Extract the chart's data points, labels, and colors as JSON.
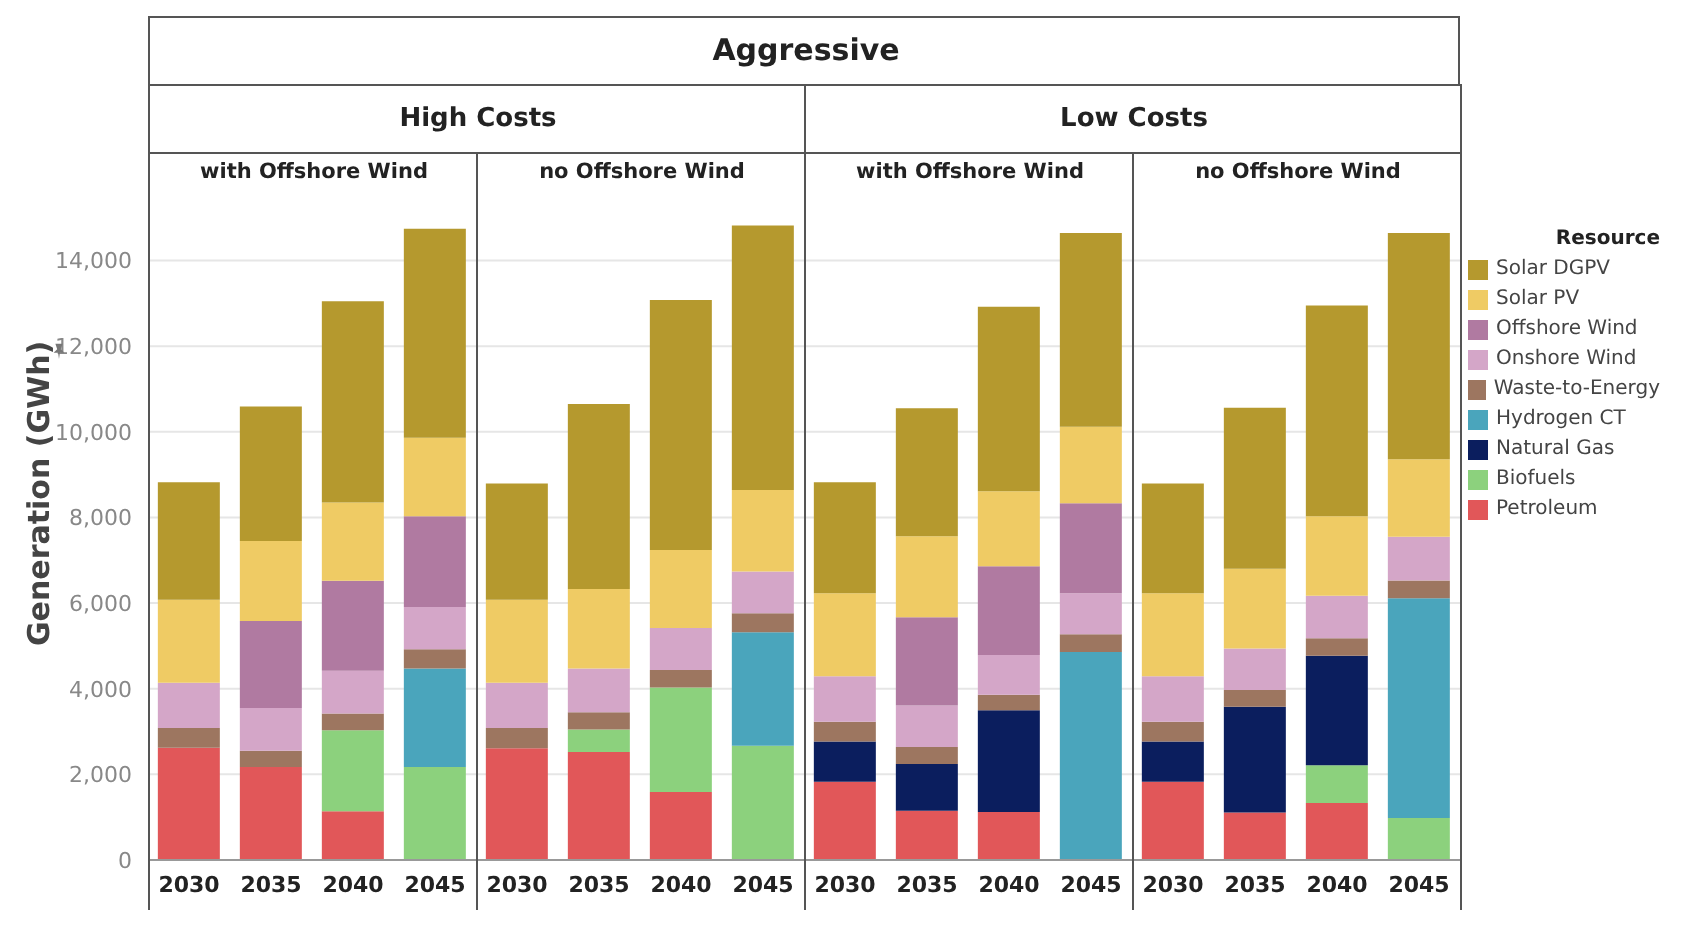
{
  "chart_data": [
    {
      "type": "bar",
      "stacked": true,
      "title": "with Offshore Wind",
      "subtitle": "High Costs",
      "annotations": [
        "Aggressive"
      ],
      "ylabel": "Generation (GWh)",
      "categories": [
        "2030",
        "2035",
        "2040",
        "2045"
      ],
      "ylim": [
        0,
        15600
      ],
      "yticks": [
        0,
        {
          "value": 2000,
          "label": "2,000"
        },
        {
          "value": 4000,
          "label": "4,000"
        },
        {
          "value": 6000,
          "label": "6,000"
        },
        {
          "value": 8000,
          "label": "8,000"
        },
        {
          "value": 10000,
          "label": "10,000"
        },
        {
          "value": 12000,
          "label": "12,000"
        },
        {
          "value": 14000,
          "label": "14,000"
        }
      ],
      "grid": "y",
      "legend": "right",
      "legend_title": "Resource",
      "series": [
        {
          "name": "Petroleum",
          "color": "#e15759",
          "values": [
            2620,
            2170,
            1140,
            null
          ]
        },
        {
          "name": "Biofuels",
          "color": "#8cd17d",
          "values": [
            null,
            null,
            1890,
            2170
          ]
        },
        {
          "name": "Natural Gas",
          "color": "#0b1e5e",
          "values": [
            null,
            null,
            null,
            null
          ]
        },
        {
          "name": "Hydrogen CT",
          "color": "#4aa5bc",
          "values": [
            null,
            null,
            null,
            2300
          ]
        },
        {
          "name": "Waste-to-Energy",
          "color": "#9d7660",
          "values": [
            460,
            380,
            390,
            450
          ]
        },
        {
          "name": "Onshore Wind",
          "color": "#d4a6c8",
          "values": [
            1060,
            1000,
            1000,
            990
          ]
        },
        {
          "name": "Offshore Wind",
          "color": "#b07aa1",
          "values": [
            null,
            2030,
            2100,
            2120
          ]
        },
        {
          "name": "Solar PV",
          "color": "#efcb64",
          "values": [
            1940,
            1870,
            1830,
            1830
          ]
        },
        {
          "name": "Solar DGPV",
          "color": "#b5992e",
          "values": [
            2740,
            3140,
            4700,
            4880
          ]
        }
      ]
    },
    {
      "type": "bar",
      "stacked": true,
      "title": "no Offshore Wind",
      "categories": [
        "2030",
        "2035",
        "2040",
        "2045"
      ],
      "ylim": [
        0,
        15600
      ],
      "yticks": [
        0,
        2000,
        4000,
        6000,
        8000,
        10000,
        12000,
        14000
      ],
      "grid": "y",
      "tick_labels": "x",
      "series": [
        {
          "color": "#e15759",
          "values": [
            2610,
            2520,
            1590,
            null
          ]
        },
        {
          "color": "#8cd17d",
          "values": [
            null,
            530,
            2440,
            2670
          ]
        },
        {
          "color": "#4aa5bc",
          "values": [
            null,
            null,
            null,
            2650
          ]
        },
        {
          "color": "#9d7660",
          "values": [
            470,
            400,
            410,
            440
          ]
        },
        {
          "color": "#d4a6c8",
          "values": [
            1060,
            1020,
            980,
            980
          ]
        },
        {
          "color": "#efcb64",
          "values": [
            1940,
            1860,
            1820,
            1900
          ]
        },
        {
          "color": "#b5992e",
          "values": [
            2710,
            4320,
            5840,
            6180
          ]
        }
      ]
    },
    {
      "type": "bar",
      "stacked": true,
      "title": "with Offshore Wind",
      "subtitle": "Low Costs",
      "categories": [
        "2030",
        "2035",
        "2040",
        "2045"
      ],
      "ylim": [
        0,
        15600
      ],
      "yticks": [
        0,
        2000,
        4000,
        6000,
        8000,
        10000,
        12000,
        14000
      ],
      "grid": "y",
      "tick_labels": "x",
      "series": [
        {
          "color": "#e15759",
          "values": [
            1830,
            1150,
            1120,
            null
          ]
        },
        {
          "color": "#0b1e5e",
          "values": [
            940,
            1090,
            2380,
            null
          ]
        },
        {
          "color": "#4aa5bc",
          "values": [
            null,
            null,
            null,
            4860
          ]
        },
        {
          "color": "#9d7660",
          "values": [
            460,
            400,
            360,
            410
          ]
        },
        {
          "color": "#d4a6c8",
          "values": [
            1060,
            970,
            930,
            960
          ]
        },
        {
          "color": "#b07aa1",
          "values": [
            null,
            2060,
            2070,
            2100
          ]
        },
        {
          "color": "#efcb64",
          "values": [
            1940,
            1890,
            1750,
            1790
          ]
        },
        {
          "color": "#b5992e",
          "values": [
            2590,
            2990,
            4310,
            4520
          ]
        }
      ]
    },
    {
      "type": "bar",
      "stacked": true,
      "title": "no Offshore Wind",
      "categories": [
        "2030",
        "2035",
        "2040",
        "2045"
      ],
      "ylim": [
        0,
        15600
      ],
      "yticks": [
        0,
        2000,
        4000,
        6000,
        8000,
        10000,
        12000,
        14000
      ],
      "grid": "y",
      "tick_labels": "x",
      "series": [
        {
          "color": "#e15759",
          "values": [
            1830,
            1110,
            1330,
            null
          ]
        },
        {
          "color": "#8cd17d",
          "values": [
            null,
            null,
            880,
            980
          ]
        },
        {
          "color": "#0b1e5e",
          "values": [
            940,
            2470,
            2560,
            null
          ]
        },
        {
          "color": "#4aa5bc",
          "values": [
            null,
            null,
            null,
            5130
          ]
        },
        {
          "color": "#9d7660",
          "values": [
            460,
            390,
            410,
            420
          ]
        },
        {
          "color": "#d4a6c8",
          "values": [
            1060,
            970,
            990,
            1020
          ]
        },
        {
          "color": "#efcb64",
          "values": [
            1940,
            1860,
            1860,
            1810
          ]
        },
        {
          "color": "#b5992e",
          "values": [
            2560,
            3760,
            4920,
            5280
          ]
        }
      ]
    }
  ]
}
